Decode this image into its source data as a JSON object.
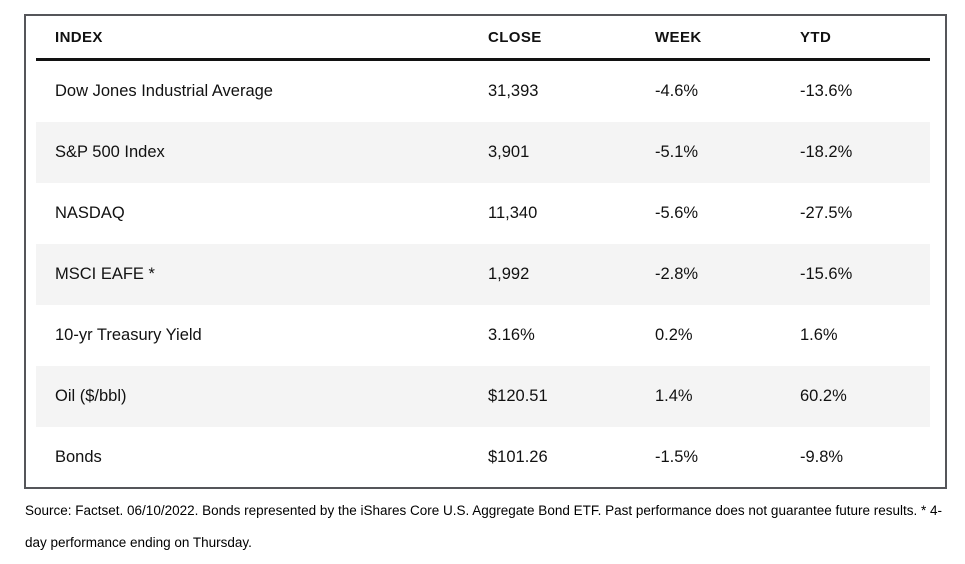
{
  "table": {
    "columns": {
      "index": "INDEX",
      "close": "CLOSE",
      "week": "WEEK",
      "ytd": "YTD"
    },
    "rows": [
      {
        "index": "Dow Jones Industrial Average",
        "close": "31,393",
        "week": "-4.6%",
        "ytd": "-13.6%"
      },
      {
        "index": "S&P 500 Index",
        "close": "3,901",
        "week": "-5.1%",
        "ytd": "-18.2%"
      },
      {
        "index": "NASDAQ",
        "close": "11,340",
        "week": "-5.6%",
        "ytd": "-27.5%"
      },
      {
        "index": "MSCI EAFE *",
        "close": "1,992",
        "week": "-2.8%",
        "ytd": "-15.6%"
      },
      {
        "index": "10-yr Treasury Yield",
        "close": "3.16%",
        "week": "0.2%",
        "ytd": "1.6%"
      },
      {
        "index": "Oil ($/bbl)",
        "close": "$120.51",
        "week": "1.4%",
        "ytd": "60.2%"
      },
      {
        "index": "Bonds",
        "close": "$101.26",
        "week": "-1.5%",
        "ytd": "-9.8%"
      }
    ]
  },
  "footnote": "Source: Factset. 06/10/2022. Bonds represented by the iShares Core U.S. Aggregate Bond ETF. Past performance does not guarantee future results. * 4-day performance ending on Thursday.",
  "colors": {
    "stripe": "#f4f4f4",
    "table_border": "#55565a",
    "header_rule": "#121212",
    "text": "#111111"
  },
  "chart_data": {
    "type": "table",
    "columns": [
      "INDEX",
      "CLOSE",
      "WEEK",
      "YTD"
    ],
    "rows": [
      [
        "Dow Jones Industrial Average",
        "31,393",
        "-4.6%",
        "-13.6%"
      ],
      [
        "S&P 500 Index",
        "3,901",
        "-5.1%",
        "-18.2%"
      ],
      [
        "NASDAQ",
        "11,340",
        "-5.6%",
        "-27.5%"
      ],
      [
        "MSCI EAFE *",
        "1,992",
        "-2.8%",
        "-15.6%"
      ],
      [
        "10-yr Treasury Yield",
        "3.16%",
        "0.2%",
        "1.6%"
      ],
      [
        "Oil ($/bbl)",
        "$120.51",
        "1.4%",
        "60.2%"
      ],
      [
        "Bonds",
        "$101.26",
        "-1.5%",
        "-9.8%"
      ]
    ],
    "title": "",
    "notes": "Weekly market performance table. Source: Factset, 06/10/2022. Striped rows: S&P 500 Index, MSCI EAFE *, Oil ($/bbl)."
  }
}
